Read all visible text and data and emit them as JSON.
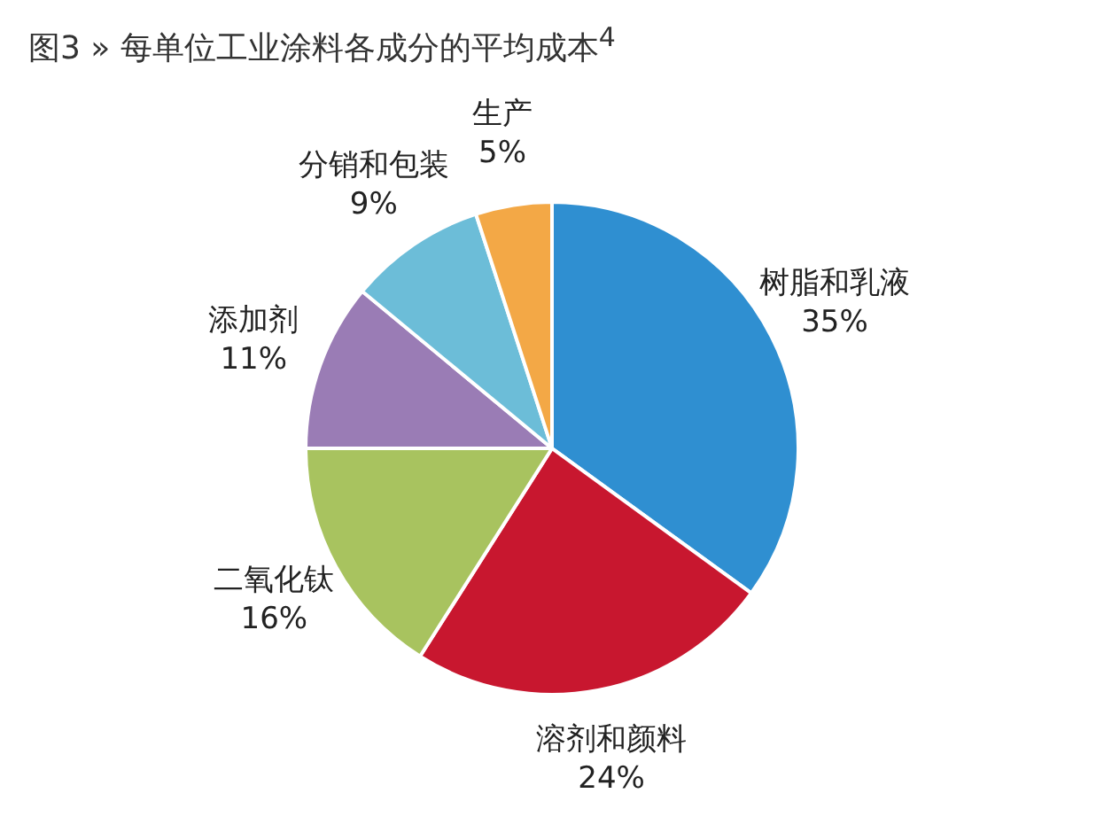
{
  "chart_data": {
    "type": "pie",
    "title": "图3 » 每单位工业涂料各成分的平均成本$^{4}$",
    "categories": [
      "树脂和乳液",
      "溶剂和颜料",
      "二氧化钛",
      "添加剂",
      "分销和包装",
      "生产"
    ],
    "values": [
      35,
      24,
      16,
      11,
      9,
      5
    ],
    "value_labels": [
      "35%",
      "24%",
      "16%",
      "11%",
      "9%",
      "5%"
    ],
    "colors": [
      "#2f8fd1",
      "#c8172f",
      "#a8c35f",
      "#9a7cb5",
      "#6cbdd8",
      "#f3a846"
    ],
    "legend": false
  }
}
